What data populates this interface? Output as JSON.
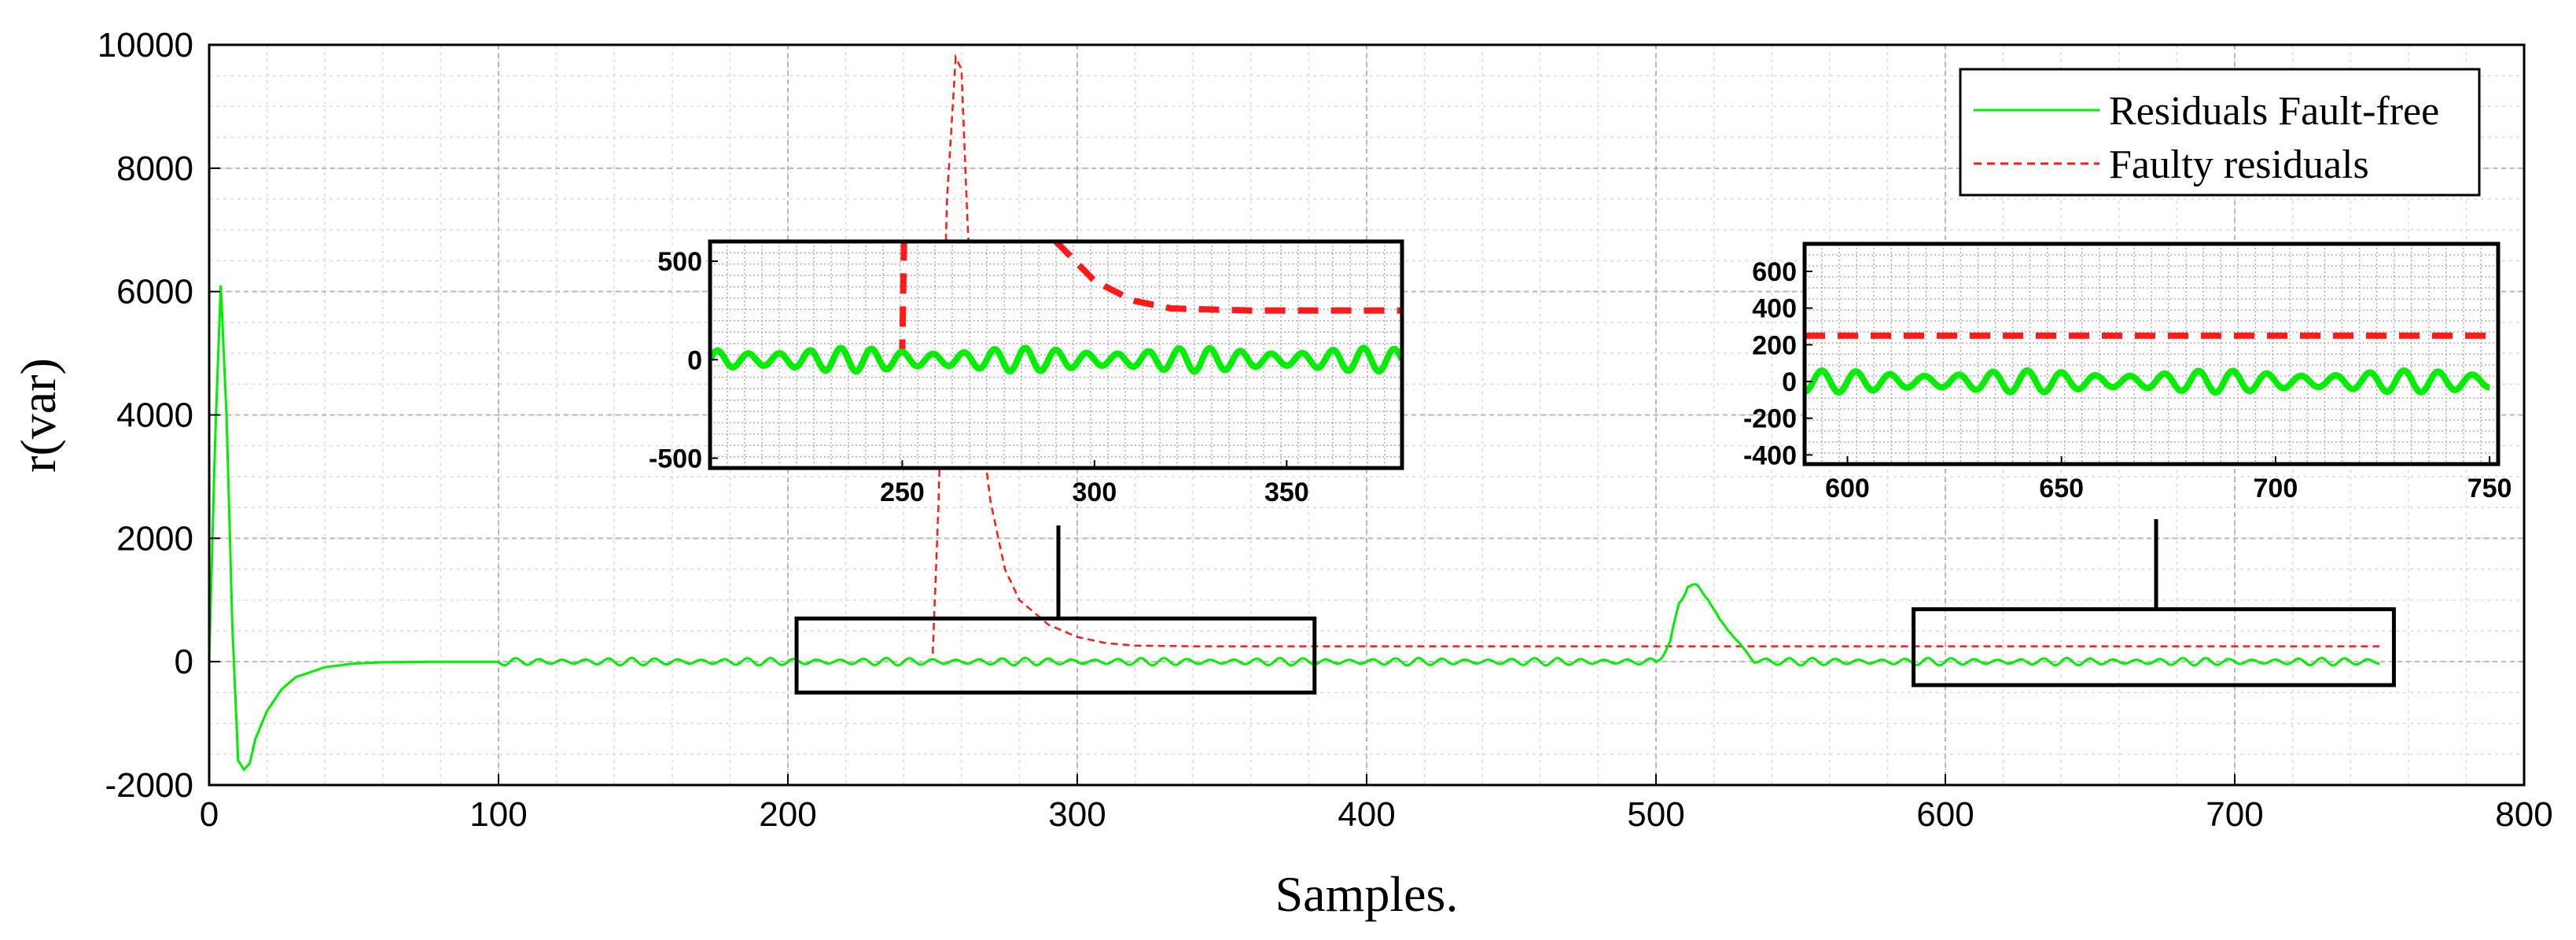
{
  "chart_data": {
    "type": "line",
    "title": "",
    "xlabel": "Samples.",
    "ylabel": "r(var)",
    "xlim": [
      0,
      800
    ],
    "ylim": [
      -2000,
      10000
    ],
    "xticks": [
      0,
      100,
      200,
      300,
      400,
      500,
      600,
      700,
      800
    ],
    "yticks": [
      -2000,
      0,
      2000,
      4000,
      6000,
      8000,
      10000
    ],
    "grid": true,
    "legend_position": "top-right",
    "series": [
      {
        "name": "Residuals Fault-free",
        "color": "#00ee00",
        "style": "solid",
        "points": [
          [
            0,
            0
          ],
          [
            2,
            3500
          ],
          [
            4,
            6100
          ],
          [
            6,
            4000
          ],
          [
            8,
            600
          ],
          [
            10,
            -1600
          ],
          [
            12,
            -1750
          ],
          [
            14,
            -1650
          ],
          [
            16,
            -1250
          ],
          [
            20,
            -800
          ],
          [
            25,
            -450
          ],
          [
            30,
            -250
          ],
          [
            40,
            -90
          ],
          [
            50,
            -30
          ],
          [
            60,
            -10
          ],
          [
            80,
            0
          ],
          [
            100,
            0
          ],
          [
            200,
            0
          ],
          [
            500,
            0
          ],
          [
            505,
            300
          ],
          [
            508,
            950
          ],
          [
            511,
            1250
          ],
          [
            514,
            1200
          ],
          [
            518,
            1050
          ],
          [
            522,
            650
          ],
          [
            526,
            480
          ],
          [
            530,
            200
          ],
          [
            534,
            20
          ],
          [
            540,
            0
          ],
          [
            750,
            0
          ]
        ],
        "oscillation": {
          "amplitude": 60,
          "period": 8,
          "from": 100,
          "to": 750
        }
      },
      {
        "name": "Faulty residuals",
        "color": "#ff1a1a",
        "style": "dashed",
        "points": [
          [
            0,
            0
          ],
          [
            2,
            3500
          ],
          [
            4,
            6100
          ],
          [
            6,
            4000
          ],
          [
            8,
            600
          ],
          [
            10,
            -1600
          ],
          [
            12,
            -1750
          ],
          [
            14,
            -1650
          ],
          [
            16,
            -1250
          ],
          [
            20,
            -800
          ],
          [
            25,
            -450
          ],
          [
            30,
            -250
          ],
          [
            40,
            -90
          ],
          [
            50,
            -30
          ],
          [
            60,
            -10
          ],
          [
            80,
            0
          ],
          [
            100,
            0
          ],
          [
            200,
            0
          ],
          [
            250,
            0
          ],
          [
            252,
            2500
          ],
          [
            255,
            7500
          ],
          [
            258,
            9800
          ],
          [
            260,
            9600
          ],
          [
            262,
            7200
          ],
          [
            265,
            4500
          ],
          [
            270,
            2600
          ],
          [
            275,
            1500
          ],
          [
            280,
            1000
          ],
          [
            285,
            800
          ],
          [
            290,
            600
          ],
          [
            300,
            400
          ],
          [
            310,
            300
          ],
          [
            320,
            260
          ],
          [
            340,
            250
          ],
          [
            750,
            250
          ]
        ],
        "oscillation": {
          "amplitude": 60,
          "period": 8,
          "from": 100,
          "to": 251
        }
      }
    ],
    "insets": [
      {
        "xlim": [
          200,
          380
        ],
        "ylim": [
          -550,
          600
        ],
        "xticks": [
          250,
          300,
          350
        ],
        "yticks": [
          -500,
          0,
          500
        ]
      },
      {
        "xlim": [
          590,
          752
        ],
        "ylim": [
          -450,
          750
        ],
        "xticks": [
          600,
          650,
          700,
          750
        ],
        "yticks": [
          -400,
          -200,
          0,
          200,
          400,
          600
        ]
      }
    ],
    "zoom_regions": [
      {
        "xlim": [
          203,
          382
        ],
        "ylim": [
          -500,
          700
        ]
      },
      {
        "xlim": [
          589,
          755
        ],
        "ylim": [
          -380,
          850
        ]
      }
    ]
  }
}
